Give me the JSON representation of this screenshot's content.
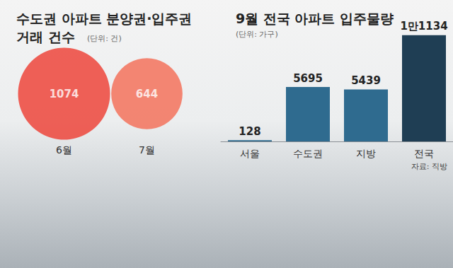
{
  "chart_data": [
    {
      "type": "bubble",
      "title": "수도권 아파트 분양권·입주권 거래 건수",
      "subtitle": "(단위: 건)",
      "categories": [
        "6월",
        "7월"
      ],
      "values": [
        1074,
        644
      ],
      "colors": [
        "#ee3b2f",
        "#f46a52"
      ],
      "data_labels": true,
      "tick_labels": "x"
    },
    {
      "type": "bar",
      "title": "9월 전국 아파트 입주물량",
      "subtitle": "(단위: 가구)",
      "categories": [
        "서울",
        "수도권",
        "지방",
        "전국"
      ],
      "values": [
        128,
        5695,
        5439,
        11134
      ],
      "value_labels": [
        "128",
        "5695",
        "5439",
        "1만1134"
      ],
      "colors": [
        "#2f6b8f",
        "#2f6b8f",
        "#2f6b8f",
        "#1f3e54"
      ],
      "ylim": [
        0,
        12000
      ],
      "yticks": [
        0,
        12000
      ],
      "grid": false,
      "data_labels": true,
      "tick_labels": "x",
      "annotations": [
        "자료: 직방"
      ]
    }
  ]
}
